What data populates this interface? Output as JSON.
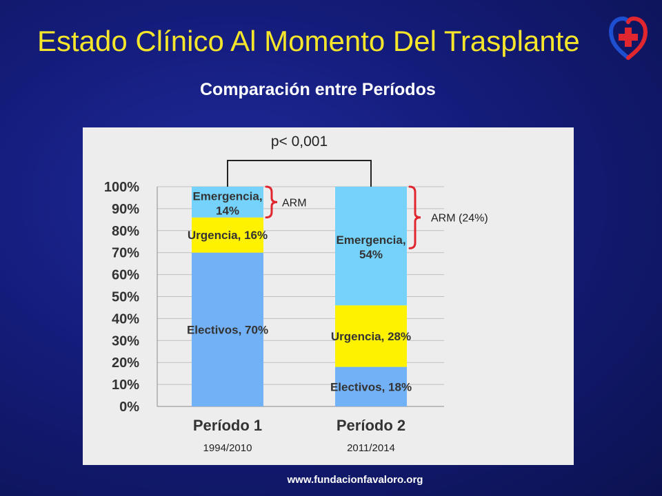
{
  "slide": {
    "title": "Estado Clínico Al Momento Del Trasplante",
    "subtitle": "Comparación entre Períodos",
    "footer": "www.fundacionfavaloro.org",
    "logo_icon": "heart-cross-logo-icon",
    "colors": {
      "background": "#141c7a",
      "title": "#f5e62b",
      "electivos": "#73b1f7",
      "urgencia": "#fff200",
      "emergencia": "#75d3fb",
      "bracket": "#e0262f"
    }
  },
  "chart_data": {
    "type": "bar",
    "stacked": true,
    "categories": [
      "Período 1",
      "Período 2"
    ],
    "category_sublabels": [
      "1994/2010",
      "2011/2014"
    ],
    "series": [
      {
        "name": "Electivos",
        "values": [
          70,
          18
        ],
        "labels": [
          "Electivos, 70%",
          "Electivos, 18%"
        ],
        "color": "#73b1f7"
      },
      {
        "name": "Urgencia",
        "values": [
          16,
          28
        ],
        "labels": [
          "Urgencia, 16%",
          "Urgencia, 28%"
        ],
        "color": "#fff200"
      },
      {
        "name": "Emergencia",
        "values": [
          14,
          54
        ],
        "labels": [
          "Emergencia, 14%",
          "Emergencia, 54%"
        ],
        "color": "#75d3fb"
      }
    ],
    "y_ticks": [
      "0%",
      "10%",
      "20%",
      "30%",
      "40%",
      "50%",
      "60%",
      "70%",
      "80%",
      "90%",
      "100%"
    ],
    "ylim": [
      0,
      100
    ],
    "grid": true,
    "annotations": {
      "significance": "p< 0,001",
      "arm_period1": "ARM",
      "arm_period2": "ARM (24%)"
    }
  }
}
